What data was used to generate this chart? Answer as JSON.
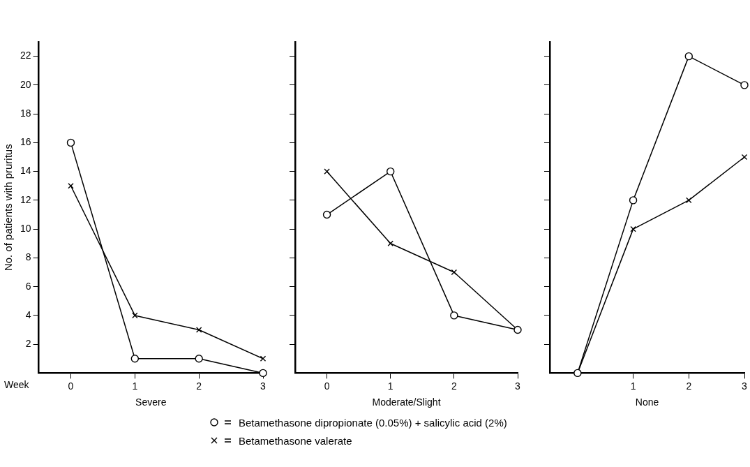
{
  "chart_data": [
    {
      "type": "line",
      "xlabel": "Severe",
      "ylabel": "No. of patients with pruritus",
      "annotations": [
        "Week"
      ],
      "x": [
        0,
        1,
        2,
        3
      ],
      "xlim": [
        -0.5,
        3
      ],
      "xticks": [
        0,
        1,
        2,
        3
      ],
      "ylim": [
        0,
        23
      ],
      "yticks": [
        2,
        4,
        6,
        8,
        10,
        12,
        14,
        16,
        18,
        20,
        22
      ],
      "grid": false,
      "series": [
        {
          "color": "#000000",
          "marker": "circle",
          "values": [
            16,
            1,
            1,
            0
          ]
        },
        {
          "color": "#000000",
          "marker": "cross",
          "values": [
            13,
            4,
            3,
            1
          ]
        }
      ]
    },
    {
      "type": "line",
      "xlabel": "Moderate/Slight",
      "x": [
        0,
        1,
        2,
        3
      ],
      "xlim": [
        -0.5,
        3
      ],
      "xticks": [
        0,
        1,
        2,
        3
      ],
      "ylim": [
        0,
        23
      ],
      "yticks": [
        2,
        4,
        6,
        8,
        10,
        12,
        14,
        16,
        18,
        20,
        22
      ],
      "tick_labels": "x",
      "grid": false,
      "legend": "bottom",
      "series": [
        {
          "name": "Betamethasone dipropionate (0.05%) + salicylic acid (2%)",
          "color": "#000000",
          "marker": "circle",
          "values": [
            11,
            14,
            4,
            3
          ]
        },
        {
          "name": "Betamethasone valerate",
          "color": "#000000",
          "marker": "cross",
          "values": [
            14,
            9,
            7,
            3
          ]
        }
      ]
    },
    {
      "type": "line",
      "xlabel": "None",
      "x": [
        0,
        1,
        2,
        3
      ],
      "xlim": [
        -0.5,
        3
      ],
      "xticks": [
        1,
        2,
        3
      ],
      "ylim": [
        0,
        23
      ],
      "yticks": [
        2,
        4,
        6,
        8,
        10,
        12,
        14,
        16,
        18,
        20,
        22
      ],
      "tick_labels": "x",
      "grid": false,
      "series": [
        {
          "color": "#000000",
          "marker": "circle",
          "values": [
            0,
            12,
            22,
            20
          ]
        },
        {
          "color": "#000000",
          "marker": "cross",
          "values": [
            0,
            10,
            12,
            15
          ]
        }
      ]
    }
  ]
}
